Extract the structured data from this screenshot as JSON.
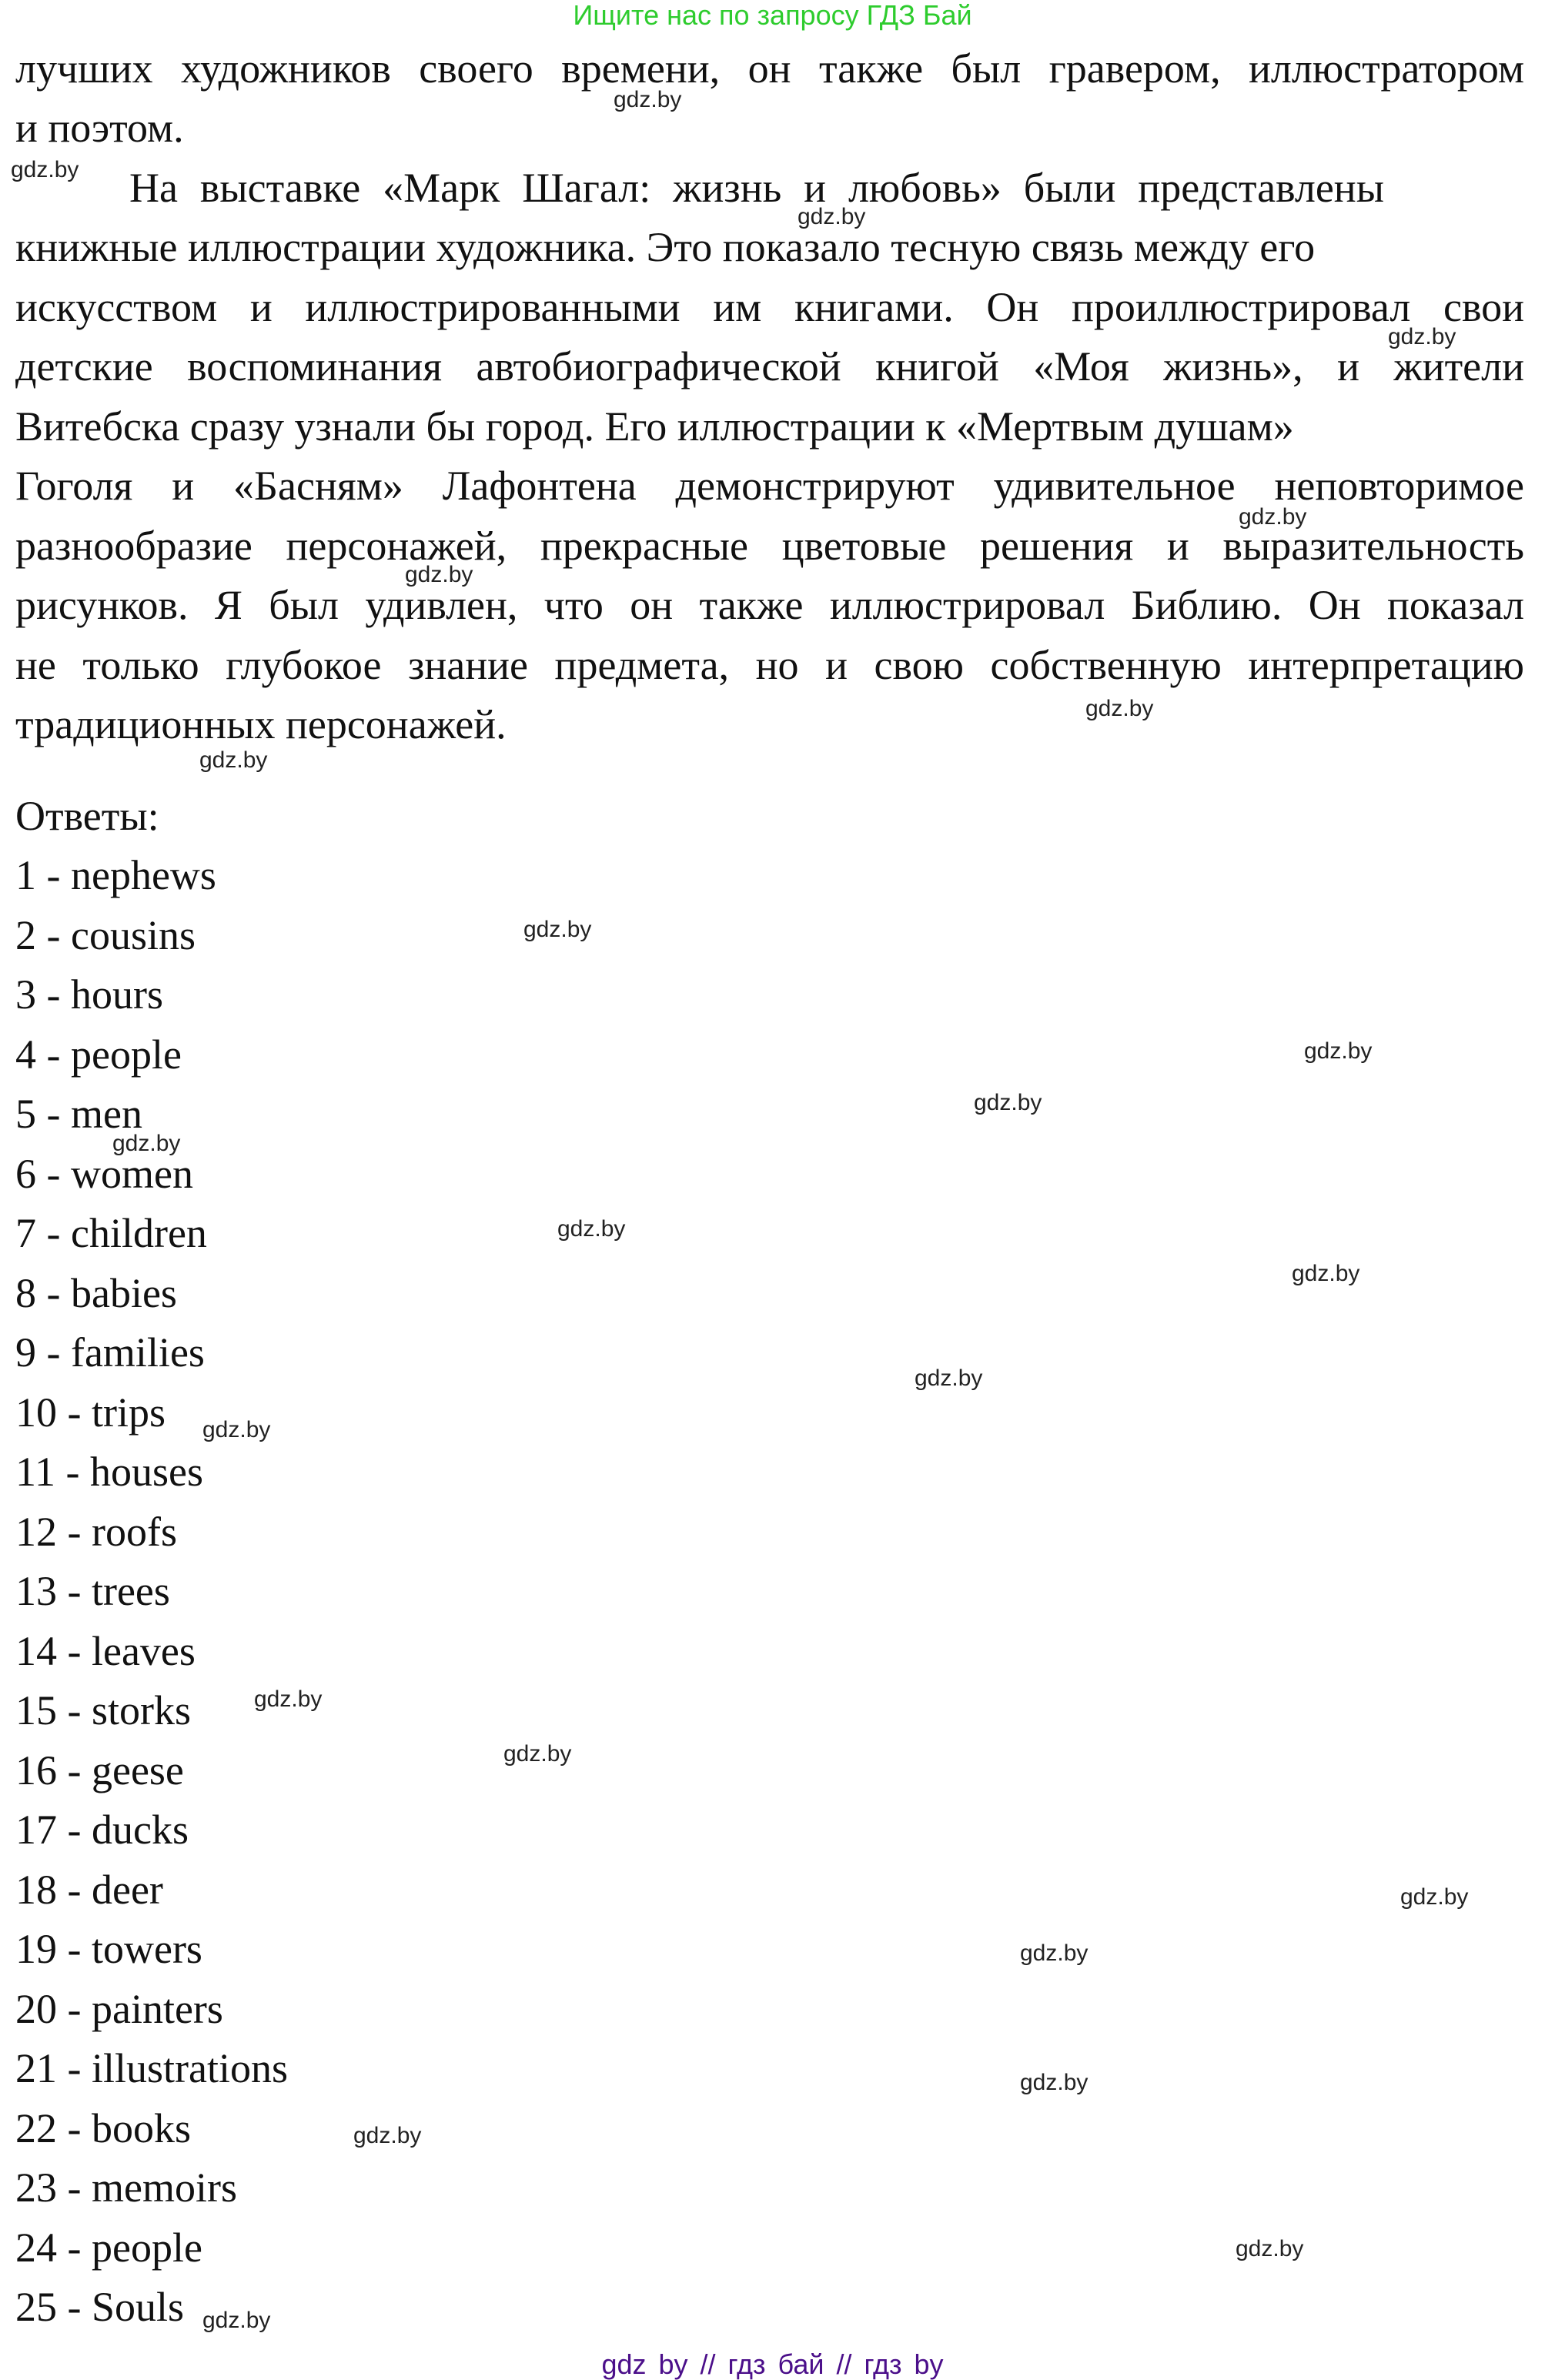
{
  "header": {
    "text": "Ищите нас по запросу ГДЗ Бай"
  },
  "paragraph": [
    "лучших художников своего времени, он также был гравером, иллюстратором",
    "и поэтом.",
    "На выставке «Марк Шагал: жизнь и любовь» были представлены",
    "книжные иллюстрации художника. Это показало тесную связь между его",
    "искусством и иллюстрированными им книгами. Он проиллюстрировал свои",
    "детские воспоминания автобиографической книгой «Моя жизнь», и жители",
    "Витебска сразу узнали бы город. Его иллюстрации к «Мертвым душам»",
    "Гоголя и «Басням» Лафонтена демонстрируют удивительное неповторимое",
    "разнообразие персонажей, прекрасные цветовые решения и выразительность",
    "рисунков. Я был удивлен, что он также иллюстрировал Библию. Он показал",
    "не только глубокое знание предмета, но и свою собственную интерпретацию",
    "традиционных персонажей."
  ],
  "answers": {
    "title": "Ответы:",
    "items": [
      "1 - nephews",
      "2 - cousins",
      "3 - hours",
      "4 - people",
      "5 - men",
      "6 - women",
      "7 - children",
      "8 - babies",
      "9 - families",
      "10 - trips",
      "11 - houses",
      "12 - roofs",
      "13 - trees",
      "14 - leaves",
      "15 - storks",
      "16 - geese",
      "17 - ducks",
      "18 - deer",
      "19 - towers",
      "20 - painters",
      "21 - illustrations",
      "22 - books",
      "23 - memoirs",
      "24 - people",
      "25 - Souls"
    ]
  },
  "watermark": "gdz.by",
  "footer": {
    "text": "gdz by  //  гдз бай  //  гдз by"
  },
  "colors": {
    "header": "#2ecc2e",
    "footer": "#4b0f8a"
  }
}
